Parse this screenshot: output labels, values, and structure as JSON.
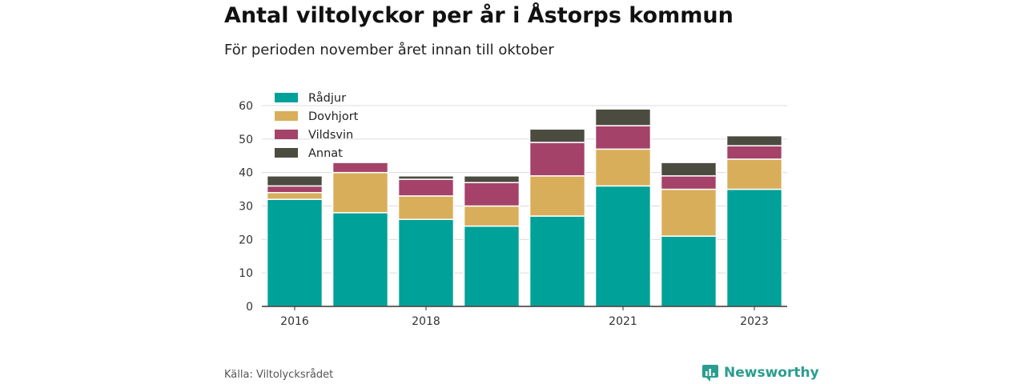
{
  "header": {
    "title": "Antal viltolyckor per år i Åstorps kommun",
    "subtitle": "För perioden november året innan till oktober"
  },
  "footer": {
    "source": "Källa: Viltolycksrådet",
    "brand": "Newsworthy"
  },
  "colors": {
    "Rådjur": "#00a198",
    "Dovhjort": "#d9ae5a",
    "Vildsvin": "#a5426a",
    "Annat": "#4b4b40",
    "brand": "#2a9d8f"
  },
  "chart_data": {
    "type": "bar",
    "stacked": true,
    "categories": [
      "2016",
      "2017",
      "2018",
      "2019",
      "2020",
      "2021",
      "2022",
      "2023"
    ],
    "x_tick_labels": [
      "2016",
      "",
      "2018",
      "",
      "",
      "2021",
      "",
      "2023"
    ],
    "series": [
      {
        "name": "Rådjur",
        "values": [
          32,
          28,
          26,
          24,
          27,
          36,
          21,
          35
        ]
      },
      {
        "name": "Dovhjort",
        "values": [
          2,
          12,
          7,
          6,
          12,
          11,
          14,
          9
        ]
      },
      {
        "name": "Vildsvin",
        "values": [
          2,
          3,
          5,
          7,
          10,
          7,
          4,
          4
        ]
      },
      {
        "name": "Annat",
        "values": [
          3,
          0,
          1,
          2,
          4,
          5,
          4,
          3
        ]
      }
    ],
    "ylim": [
      0,
      60
    ],
    "yticks": [
      0,
      10,
      20,
      30,
      40,
      50,
      60
    ],
    "grid": true,
    "legend": "top-left"
  }
}
